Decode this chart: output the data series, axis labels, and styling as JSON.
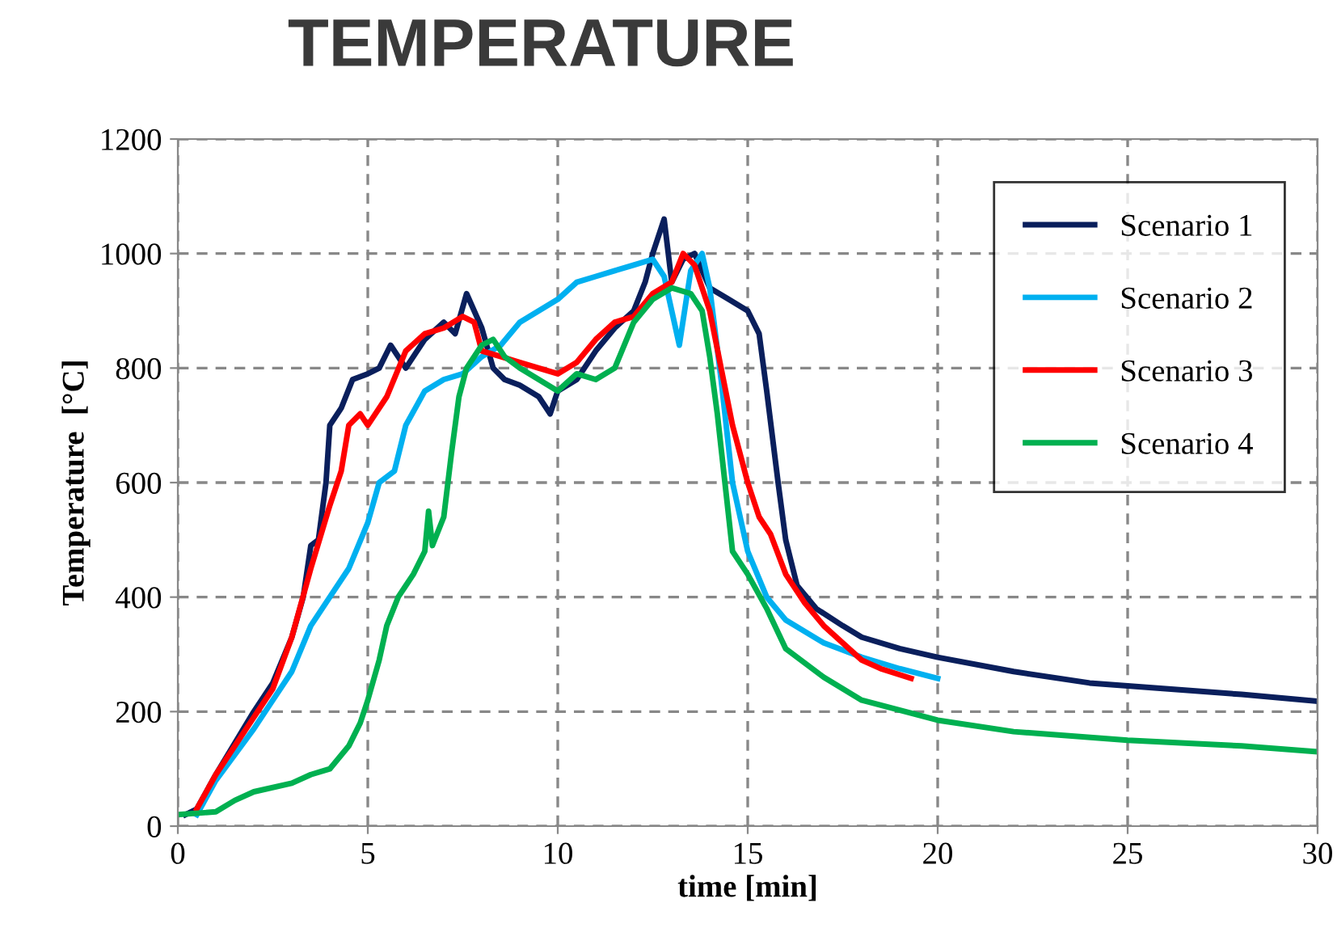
{
  "chart_data": {
    "type": "line",
    "title": "TEMPERATURE",
    "xlabel": "time [min]",
    "ylabel": "Temperature  [°C]",
    "xlim": [
      0,
      30
    ],
    "ylim": [
      0,
      1200
    ],
    "xticks": [
      0,
      5,
      10,
      15,
      20,
      25,
      30
    ],
    "yticks": [
      0,
      200,
      400,
      600,
      800,
      1000,
      1200
    ],
    "grid": true,
    "legend": "top right",
    "marker": "none",
    "line_style": "solid",
    "series": [
      {
        "name": "Scenario 1",
        "color": "#0a1f5c",
        "x": [
          0.2,
          0.5,
          1,
          2,
          2.5,
          3,
          3.3,
          3.5,
          3.7,
          3.9,
          4,
          4.3,
          4.6,
          5,
          5.3,
          5.6,
          6,
          6.5,
          7,
          7.3,
          7.6,
          8,
          8.3,
          8.6,
          9,
          9.5,
          9.8,
          10,
          10.5,
          11,
          11.5,
          12,
          12.3,
          12.5,
          12.8,
          13,
          13.3,
          13.6,
          14,
          14.5,
          15,
          15.3,
          15.5,
          15.8,
          16,
          16.3,
          16.8,
          17.5,
          18,
          19,
          20,
          22,
          24,
          26,
          28,
          30
        ],
        "values": [
          20,
          30,
          90,
          200,
          250,
          330,
          400,
          490,
          500,
          600,
          700,
          730,
          780,
          790,
          800,
          840,
          800,
          850,
          880,
          860,
          930,
          870,
          800,
          780,
          770,
          750,
          720,
          760,
          780,
          830,
          870,
          900,
          950,
          1000,
          1060,
          950,
          990,
          1000,
          940,
          920,
          900,
          860,
          760,
          600,
          500,
          420,
          380,
          350,
          330,
          310,
          295,
          270,
          250,
          240,
          230,
          218
        ]
      },
      {
        "name": "Scenario 2",
        "color": "#00b0f0",
        "x": [
          0.5,
          1,
          2,
          2.5,
          3,
          3.5,
          4,
          4.5,
          5,
          5.3,
          5.7,
          6,
          6.5,
          7,
          7.5,
          8,
          8.5,
          9,
          9.5,
          10,
          10.5,
          11,
          11.5,
          12,
          12.5,
          12.8,
          13,
          13.2,
          13.5,
          13.8,
          14,
          14.3,
          14.6,
          15,
          15.5,
          16,
          17,
          18,
          19,
          20
        ],
        "values": [
          20,
          80,
          170,
          220,
          270,
          350,
          400,
          450,
          530,
          600,
          620,
          700,
          760,
          780,
          790,
          820,
          840,
          880,
          900,
          920,
          950,
          960,
          970,
          980,
          990,
          960,
          900,
          840,
          970,
          1000,
          940,
          780,
          600,
          480,
          400,
          360,
          320,
          295,
          275,
          258
        ]
      },
      {
        "name": "Scenario 3",
        "color": "#ff0000",
        "x": [
          0.5,
          1,
          2,
          2.5,
          3,
          3.5,
          4,
          4.3,
          4.5,
          4.8,
          5,
          5.5,
          6,
          6.5,
          7,
          7.5,
          7.8,
          8,
          8.5,
          9,
          9.5,
          10,
          10.5,
          11,
          11.5,
          12,
          12.5,
          13,
          13.3,
          13.6,
          14,
          14.3,
          14.6,
          15,
          15.3,
          15.6,
          16,
          16.5,
          17,
          17.5,
          18,
          18.5,
          19.3
        ],
        "values": [
          30,
          90,
          190,
          240,
          330,
          450,
          560,
          620,
          700,
          720,
          700,
          750,
          830,
          860,
          870,
          890,
          880,
          830,
          820,
          810,
          800,
          790,
          810,
          850,
          880,
          890,
          930,
          950,
          1000,
          980,
          900,
          800,
          700,
          600,
          540,
          510,
          440,
          390,
          350,
          320,
          290,
          275,
          258
        ]
      },
      {
        "name": "Scenario 4",
        "color": "#00b050",
        "x": [
          0,
          1,
          1.5,
          2,
          3,
          3.5,
          4,
          4.5,
          4.8,
          5,
          5.3,
          5.5,
          5.8,
          6,
          6.2,
          6.5,
          6.6,
          6.7,
          7,
          7.2,
          7.4,
          7.6,
          8,
          8.3,
          8.6,
          9,
          9.5,
          10,
          10.5,
          11,
          11.5,
          12,
          12.5,
          13,
          13.5,
          13.8,
          14,
          14.2,
          14.4,
          14.6,
          15,
          15.5,
          16,
          17,
          18,
          20,
          22,
          25,
          28,
          30
        ],
        "values": [
          20,
          25,
          45,
          60,
          75,
          90,
          100,
          140,
          180,
          220,
          290,
          350,
          400,
          420,
          440,
          480,
          550,
          490,
          540,
          650,
          750,
          800,
          840,
          850,
          820,
          800,
          780,
          760,
          790,
          780,
          800,
          880,
          920,
          940,
          930,
          900,
          820,
          720,
          600,
          480,
          440,
          380,
          310,
          260,
          220,
          185,
          165,
          150,
          140,
          130
        ]
      }
    ]
  }
}
